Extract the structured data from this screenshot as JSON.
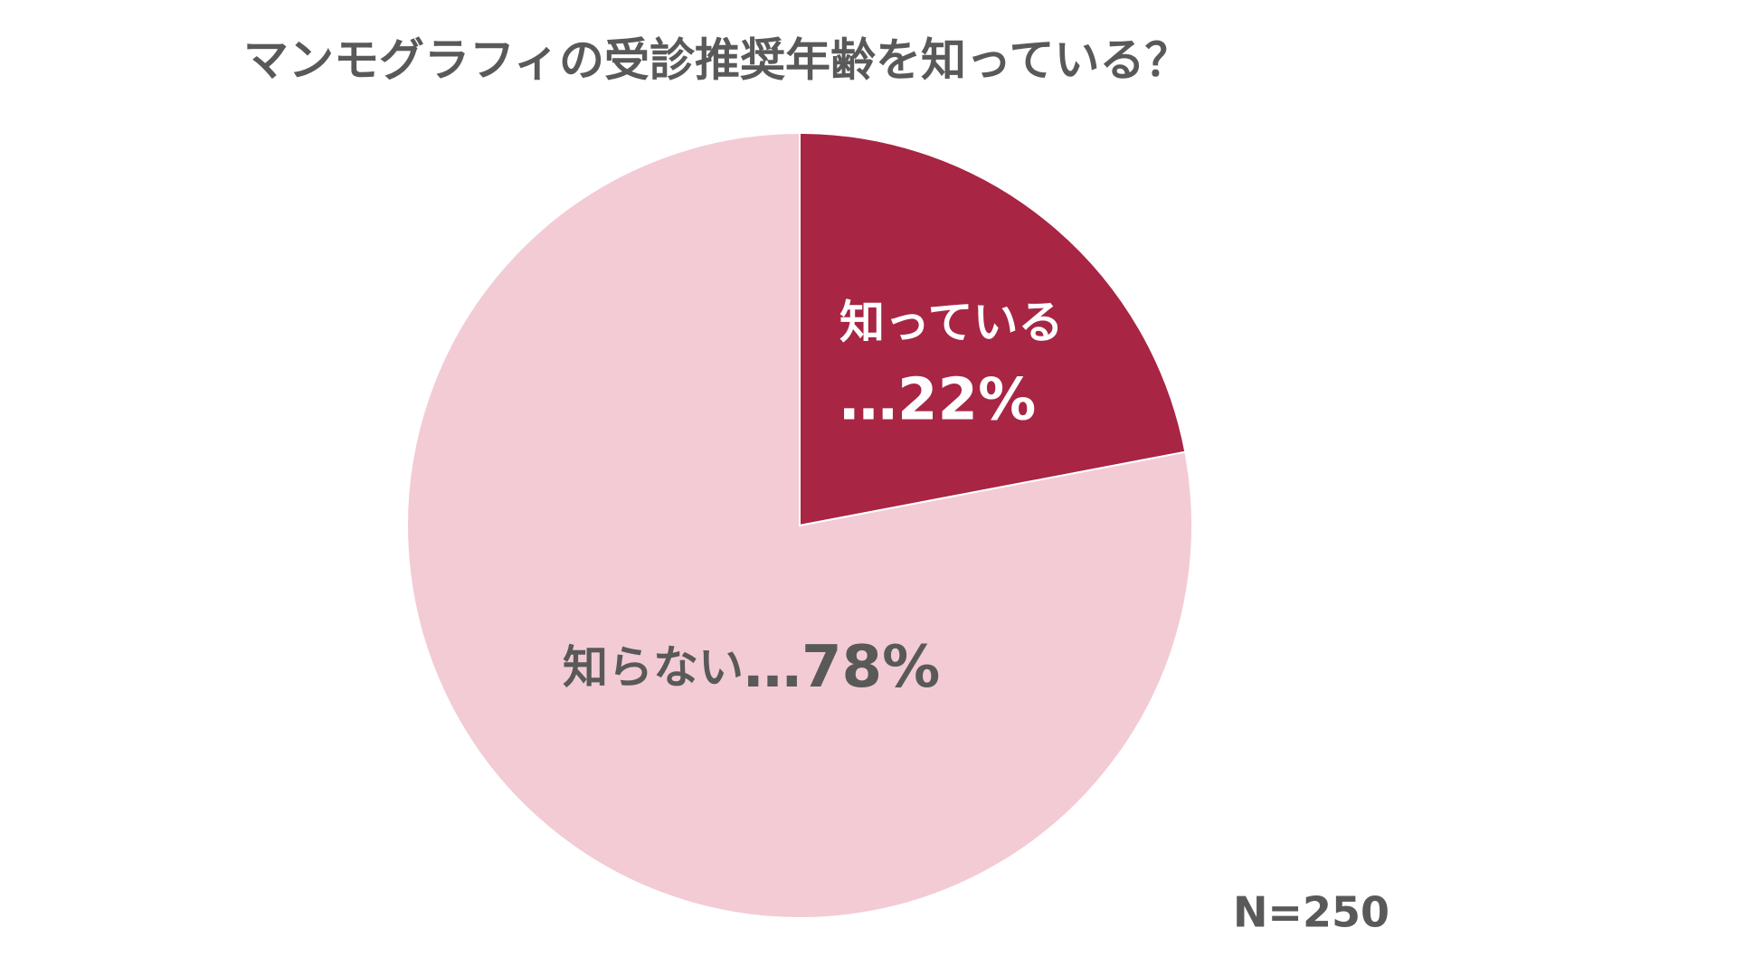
{
  "chart_data": {
    "type": "pie",
    "title": "マンモグラフィの受診推奨年齢を知っている？",
    "categories": [
      "知っている",
      "知らない"
    ],
    "values": [
      22,
      78
    ],
    "value_labels": [
      "…22%",
      "…78%"
    ],
    "colors": [
      "#a82544",
      "#f3cbd5"
    ],
    "annotation": "N=250"
  }
}
